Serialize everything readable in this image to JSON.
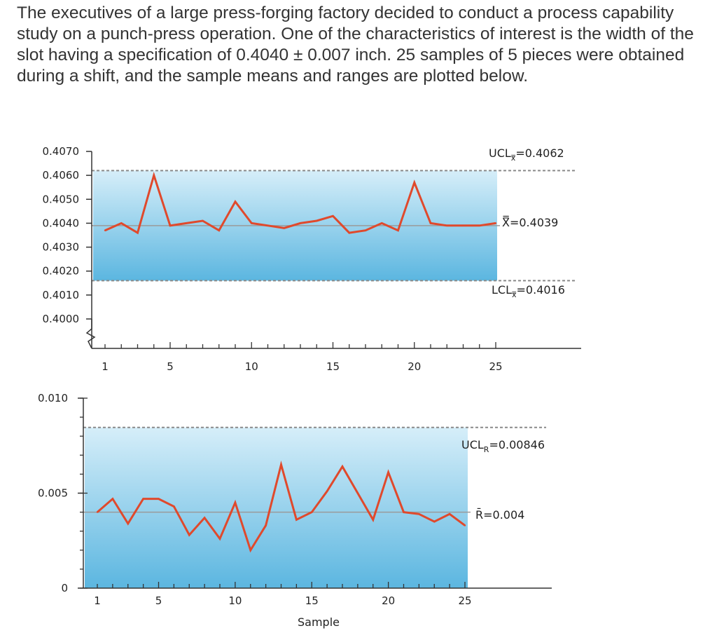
{
  "problem": {
    "text": "The executives of a large press-forging factory decided to conduct a process capability study on a punch-press operation. One of the characteristics of interest is the width of the slot having a specification of 0.4040 ± 0.007 inch. 25 samples of 5 pieces were obtained during a shift, and the sample means and ranges are plotted below."
  },
  "colors": {
    "series": "#e0492c",
    "band_top": "#d6eef9",
    "band_bottom": "#5bb6e0",
    "axis": "#333333",
    "center": "#9a9a9a",
    "limit": "#8a8a8a"
  },
  "chart_data": [
    {
      "type": "line",
      "title": "",
      "xlabel": "",
      "ylabel": "",
      "samples": [
        1,
        2,
        3,
        4,
        5,
        6,
        7,
        8,
        9,
        10,
        11,
        12,
        13,
        14,
        15,
        16,
        17,
        18,
        19,
        20,
        21,
        22,
        23,
        24,
        25
      ],
      "values": [
        0.4037,
        0.404,
        0.4036,
        0.406,
        0.4039,
        0.404,
        0.4041,
        0.4037,
        0.4049,
        0.404,
        0.4039,
        0.4038,
        0.404,
        0.4041,
        0.4043,
        0.4036,
        0.4037,
        0.404,
        0.4037,
        0.4057,
        0.404,
        0.4039,
        0.4039,
        0.4039,
        0.404
      ],
      "ylim": [
        0.4,
        0.407
      ],
      "yticks": [
        "0.4070",
        "0.4060",
        "0.4050",
        "0.4040",
        "0.4030",
        "0.4020",
        "0.4010",
        "0.4000"
      ],
      "xticks": [
        "1",
        "5",
        "10",
        "15",
        "20",
        "25"
      ],
      "center": 0.4039,
      "ucl": 0.4062,
      "lcl": 0.4016,
      "center_label": "X̿=0.4039",
      "ucl_label": "UCLx̿=0.4062",
      "lcl_label": "LCLx̿=0.4016"
    },
    {
      "type": "line",
      "title": "",
      "xlabel": "Sample",
      "ylabel": "",
      "samples": [
        1,
        2,
        3,
        4,
        5,
        6,
        7,
        8,
        9,
        10,
        11,
        12,
        13,
        14,
        15,
        16,
        17,
        18,
        19,
        20,
        21,
        22,
        23,
        24,
        25
      ],
      "values": [
        0.004,
        0.0047,
        0.0034,
        0.0047,
        0.0047,
        0.0043,
        0.0028,
        0.0037,
        0.0026,
        0.0045,
        0.002,
        0.0033,
        0.0065,
        0.0036,
        0.004,
        0.0051,
        0.0064,
        0.005,
        0.0036,
        0.0061,
        0.004,
        0.0039,
        0.0035,
        0.0039,
        0.0033
      ],
      "ylim": [
        0.0,
        0.01
      ],
      "yticks": [
        "0.010",
        "0.005",
        "0"
      ],
      "xticks": [
        "1",
        "5",
        "10",
        "15",
        "20",
        "25"
      ],
      "center": 0.004,
      "ucl": 0.00846,
      "center_label": "R̄=0.004",
      "ucl_label": "UCLR=0.00846"
    }
  ]
}
